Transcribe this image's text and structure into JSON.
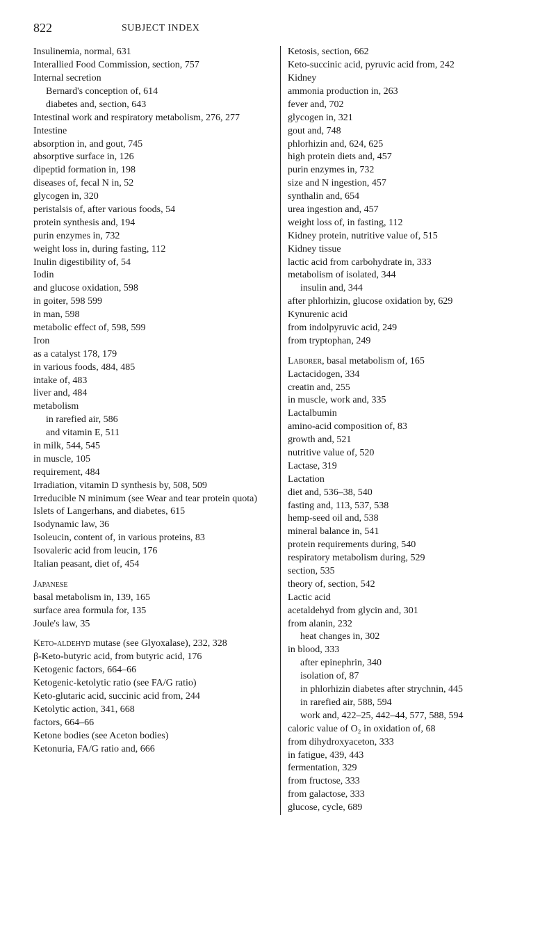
{
  "header": {
    "page_number": "822",
    "running_title": "SUBJECT INDEX"
  },
  "left": [
    {
      "t": "Insulinemia, normal, 631",
      "lvl": "hang0"
    },
    {
      "t": "Interallied Food Commission, section, 757",
      "lvl": "hang0"
    },
    {
      "t": "Internal secretion",
      "lvl": "hang0"
    },
    {
      "t": "Bernard's conception of, 614",
      "lvl": "l2"
    },
    {
      "t": "diabetes and, section, 643",
      "lvl": "l2"
    },
    {
      "t": "Intestinal work and respiratory metabolism, 276, 277",
      "lvl": "hang0"
    },
    {
      "t": "Intestine",
      "lvl": "hang0"
    },
    {
      "t": "absorption in, and gout, 745",
      "lvl": "l1"
    },
    {
      "t": "absorptive surface in, 126",
      "lvl": "l1"
    },
    {
      "t": "dipeptid formation in, 198",
      "lvl": "l1"
    },
    {
      "t": "diseases of, fecal N in, 52",
      "lvl": "l1"
    },
    {
      "t": "glycogen in, 320",
      "lvl": "l1"
    },
    {
      "t": "peristalsis of, after various foods, 54",
      "lvl": "l1"
    },
    {
      "t": "protein synthesis and, 194",
      "lvl": "l1"
    },
    {
      "t": "purin enzymes in, 732",
      "lvl": "l1"
    },
    {
      "t": "weight loss in, during fasting, 112",
      "lvl": "l1"
    },
    {
      "t": "Inulin digestibility of, 54",
      "lvl": "hang0"
    },
    {
      "t": "Iodin",
      "lvl": "hang0"
    },
    {
      "t": "and glucose oxidation, 598",
      "lvl": "l1"
    },
    {
      "t": "in goiter, 598 599",
      "lvl": "l1"
    },
    {
      "t": "in man, 598",
      "lvl": "l1"
    },
    {
      "t": "metabolic effect of, 598, 599",
      "lvl": "l1"
    },
    {
      "t": "Iron",
      "lvl": "hang0"
    },
    {
      "t": "as a catalyst 178, 179",
      "lvl": "l1"
    },
    {
      "t": "in various foods, 484, 485",
      "lvl": "l1"
    },
    {
      "t": "intake of, 483",
      "lvl": "l1"
    },
    {
      "t": "liver and, 484",
      "lvl": "l1"
    },
    {
      "t": "metabolism",
      "lvl": "l1"
    },
    {
      "t": "in rarefied air, 586",
      "lvl": "l2"
    },
    {
      "t": "and vitamin E, 511",
      "lvl": "l2"
    },
    {
      "t": "in milk, 544, 545",
      "lvl": "l1"
    },
    {
      "t": "in muscle, 105",
      "lvl": "l1"
    },
    {
      "t": "requirement, 484",
      "lvl": "l1"
    },
    {
      "t": "Irradiation, vitamin D synthesis by, 508, 509",
      "lvl": "hang0"
    },
    {
      "t": "Irreducible N minimum (see Wear and tear protein quota)",
      "lvl": "hang0"
    },
    {
      "t": "Islets of Langerhans, and diabetes, 615",
      "lvl": "hang0"
    },
    {
      "t": "Isodynamic law, 36",
      "lvl": "hang0"
    },
    {
      "t": "Isoleucin, content of, in various proteins, 83",
      "lvl": "hang0"
    },
    {
      "t": "Isovaleric acid from leucin, 176",
      "lvl": "hang0"
    },
    {
      "t": "Italian peasant, diet of, 454",
      "lvl": "hang0"
    },
    {
      "t": "",
      "lvl": "spacer"
    },
    {
      "t": "Japanese",
      "lvl": "hang0",
      "sc": true
    },
    {
      "t": "basal metabolism in, 139, 165",
      "lvl": "l1"
    },
    {
      "t": "surface area formula for, 135",
      "lvl": "l1"
    },
    {
      "t": "Joule's law, 35",
      "lvl": "hang0"
    },
    {
      "t": "",
      "lvl": "spacer"
    },
    {
      "t": "Keto-aldehyd mutase (see Glyoxalase), 232, 328",
      "lvl": "hang0",
      "sc_first": "Keto-aldehyd"
    },
    {
      "t": "β-Keto-butyric acid, from butyric acid, 176",
      "lvl": "hang0"
    },
    {
      "t": "Ketogenic factors, 664–66",
      "lvl": "hang0"
    },
    {
      "t": "Ketogenic-ketolytic ratio (see FA/G ratio)",
      "lvl": "hang0"
    },
    {
      "t": "Keto-glutaric acid, succinic acid from, 244",
      "lvl": "hang0"
    },
    {
      "t": "Ketolytic action, 341, 668",
      "lvl": "hang0"
    },
    {
      "t": "factors, 664–66",
      "lvl": "l1"
    },
    {
      "t": "Ketone bodies (see Aceton bodies)",
      "lvl": "hang0"
    },
    {
      "t": "Ketonuria, FA/G ratio and, 666",
      "lvl": "hang0"
    }
  ],
  "right": [
    {
      "t": "Ketosis, section, 662",
      "lvl": "hang0"
    },
    {
      "t": "Keto-succinic acid, pyruvic acid from, 242",
      "lvl": "hang0"
    },
    {
      "t": "Kidney",
      "lvl": "hang0"
    },
    {
      "t": "ammonia production in, 263",
      "lvl": "l1"
    },
    {
      "t": "fever and, 702",
      "lvl": "l1"
    },
    {
      "t": "glycogen in, 321",
      "lvl": "l1"
    },
    {
      "t": "gout and, 748",
      "lvl": "l1"
    },
    {
      "t": "phlorhizin and, 624, 625",
      "lvl": "l1"
    },
    {
      "t": "high protein diets and, 457",
      "lvl": "l1"
    },
    {
      "t": "purin enzymes in, 732",
      "lvl": "l1"
    },
    {
      "t": "size and N ingestion, 457",
      "lvl": "l1"
    },
    {
      "t": "synthalin and, 654",
      "lvl": "l1"
    },
    {
      "t": "urea ingestion and, 457",
      "lvl": "l1"
    },
    {
      "t": "weight loss of, in fasting, 112",
      "lvl": "l1"
    },
    {
      "t": "Kidney protein, nutritive value of, 515",
      "lvl": "hang0"
    },
    {
      "t": "Kidney tissue",
      "lvl": "hang0"
    },
    {
      "t": "lactic acid from carbohydrate in, 333",
      "lvl": "l1"
    },
    {
      "t": "metabolism of isolated, 344",
      "lvl": "l1"
    },
    {
      "t": "insulin and, 344",
      "lvl": "l2"
    },
    {
      "t": "after phlorhizin, glucose oxidation by, 629",
      "lvl": "l1"
    },
    {
      "t": "Kynurenic acid",
      "lvl": "hang0"
    },
    {
      "t": "from indolpyruvic acid, 249",
      "lvl": "l1"
    },
    {
      "t": "from tryptophan, 249",
      "lvl": "l1"
    },
    {
      "t": "",
      "lvl": "spacer"
    },
    {
      "t": "Laborer, basal metabolism of, 165",
      "lvl": "hang0",
      "sc_first": "Laborer"
    },
    {
      "t": "Lactacidogen, 334",
      "lvl": "hang0"
    },
    {
      "t": "creatin and, 255",
      "lvl": "l1"
    },
    {
      "t": "in muscle, work and, 335",
      "lvl": "l1"
    },
    {
      "t": "Lactalbumin",
      "lvl": "hang0"
    },
    {
      "t": "amino-acid composition of, 83",
      "lvl": "l1"
    },
    {
      "t": "growth and, 521",
      "lvl": "l1"
    },
    {
      "t": "nutritive value of, 520",
      "lvl": "l1"
    },
    {
      "t": "Lactase, 319",
      "lvl": "hang0"
    },
    {
      "t": "Lactation",
      "lvl": "hang0"
    },
    {
      "t": "diet and, 536–38, 540",
      "lvl": "l1"
    },
    {
      "t": "fasting and, 113, 537, 538",
      "lvl": "l1"
    },
    {
      "t": "hemp-seed oil and, 538",
      "lvl": "l1"
    },
    {
      "t": "mineral balance in, 541",
      "lvl": "l1"
    },
    {
      "t": "protein requirements during, 540",
      "lvl": "l1"
    },
    {
      "t": "respiratory metabolism during, 529",
      "lvl": "l1"
    },
    {
      "t": "section, 535",
      "lvl": "l1"
    },
    {
      "t": "theory of, section, 542",
      "lvl": "l1"
    },
    {
      "t": "Lactic acid",
      "lvl": "hang0"
    },
    {
      "t": "acetaldehyd from glycin and, 301",
      "lvl": "l1"
    },
    {
      "t": "from alanin, 232",
      "lvl": "l1"
    },
    {
      "t": "heat changes in, 302",
      "lvl": "l2"
    },
    {
      "t": "in blood, 333",
      "lvl": "l1"
    },
    {
      "t": "after epinephrin, 340",
      "lvl": "l2"
    },
    {
      "t": "isolation of, 87",
      "lvl": "l2"
    },
    {
      "t": "in phlorhizin diabetes after strychnin, 445",
      "lvl": "l2"
    },
    {
      "t": "in rarefied air, 588, 594",
      "lvl": "l2"
    },
    {
      "t": "work and, 422–25, 442–44, 577, 588, 594",
      "lvl": "l2"
    },
    {
      "t": "caloric value of O₂ in oxidation of, 68",
      "lvl": "l1"
    },
    {
      "t": "from dihydroxyaceton, 333",
      "lvl": "l1"
    },
    {
      "t": "in fatigue, 439, 443",
      "lvl": "l1"
    },
    {
      "t": "fermentation, 329",
      "lvl": "l1"
    },
    {
      "t": "from fructose, 333",
      "lvl": "l1"
    },
    {
      "t": "from galactose, 333",
      "lvl": "l1"
    },
    {
      "t": "glucose, cycle, 689",
      "lvl": "l1"
    }
  ]
}
